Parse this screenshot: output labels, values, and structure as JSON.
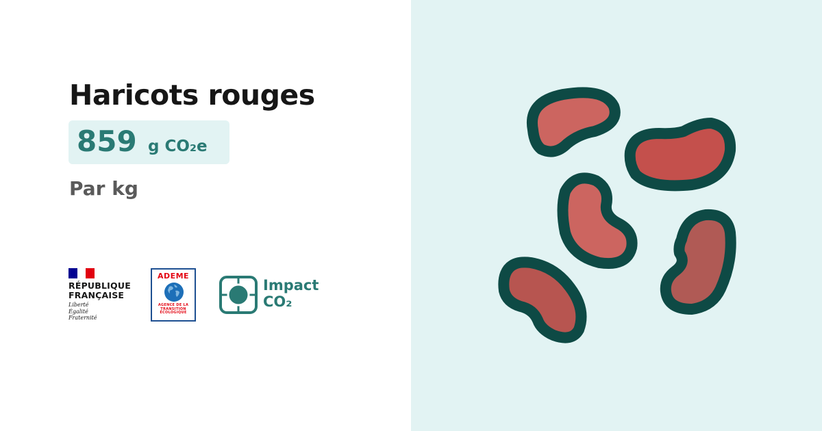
{
  "product": {
    "title": "Haricots rouges",
    "value": "859",
    "unit": "g CO₂e",
    "per": "Par kg"
  },
  "logos": {
    "republique": {
      "line1": "RÉPUBLIQUE",
      "line2": "FRANÇAISE",
      "motto1": "Liberté",
      "motto2": "Égalité",
      "motto3": "Fraternité"
    },
    "ademe": {
      "name": "ADEME",
      "tagline1": "AGENCE DE LA",
      "tagline2": "TRANSITION",
      "tagline3": "ÉCOLOGIQUE"
    },
    "impact": {
      "line1": "Impact",
      "line2": "CO₂"
    }
  },
  "illustration": {
    "icon": "red-beans-icon",
    "colors": {
      "background": "#e2f3f3",
      "outline": "#0e4a45",
      "bean_light": "#cc6560",
      "bean_red": "#c4504c",
      "bean_dark": "#b05a55"
    }
  },
  "colors": {
    "accent": "#2a7a74",
    "value_bg": "#e2f3f3",
    "flag_blue": "#000091",
    "flag_red": "#e1000f"
  }
}
